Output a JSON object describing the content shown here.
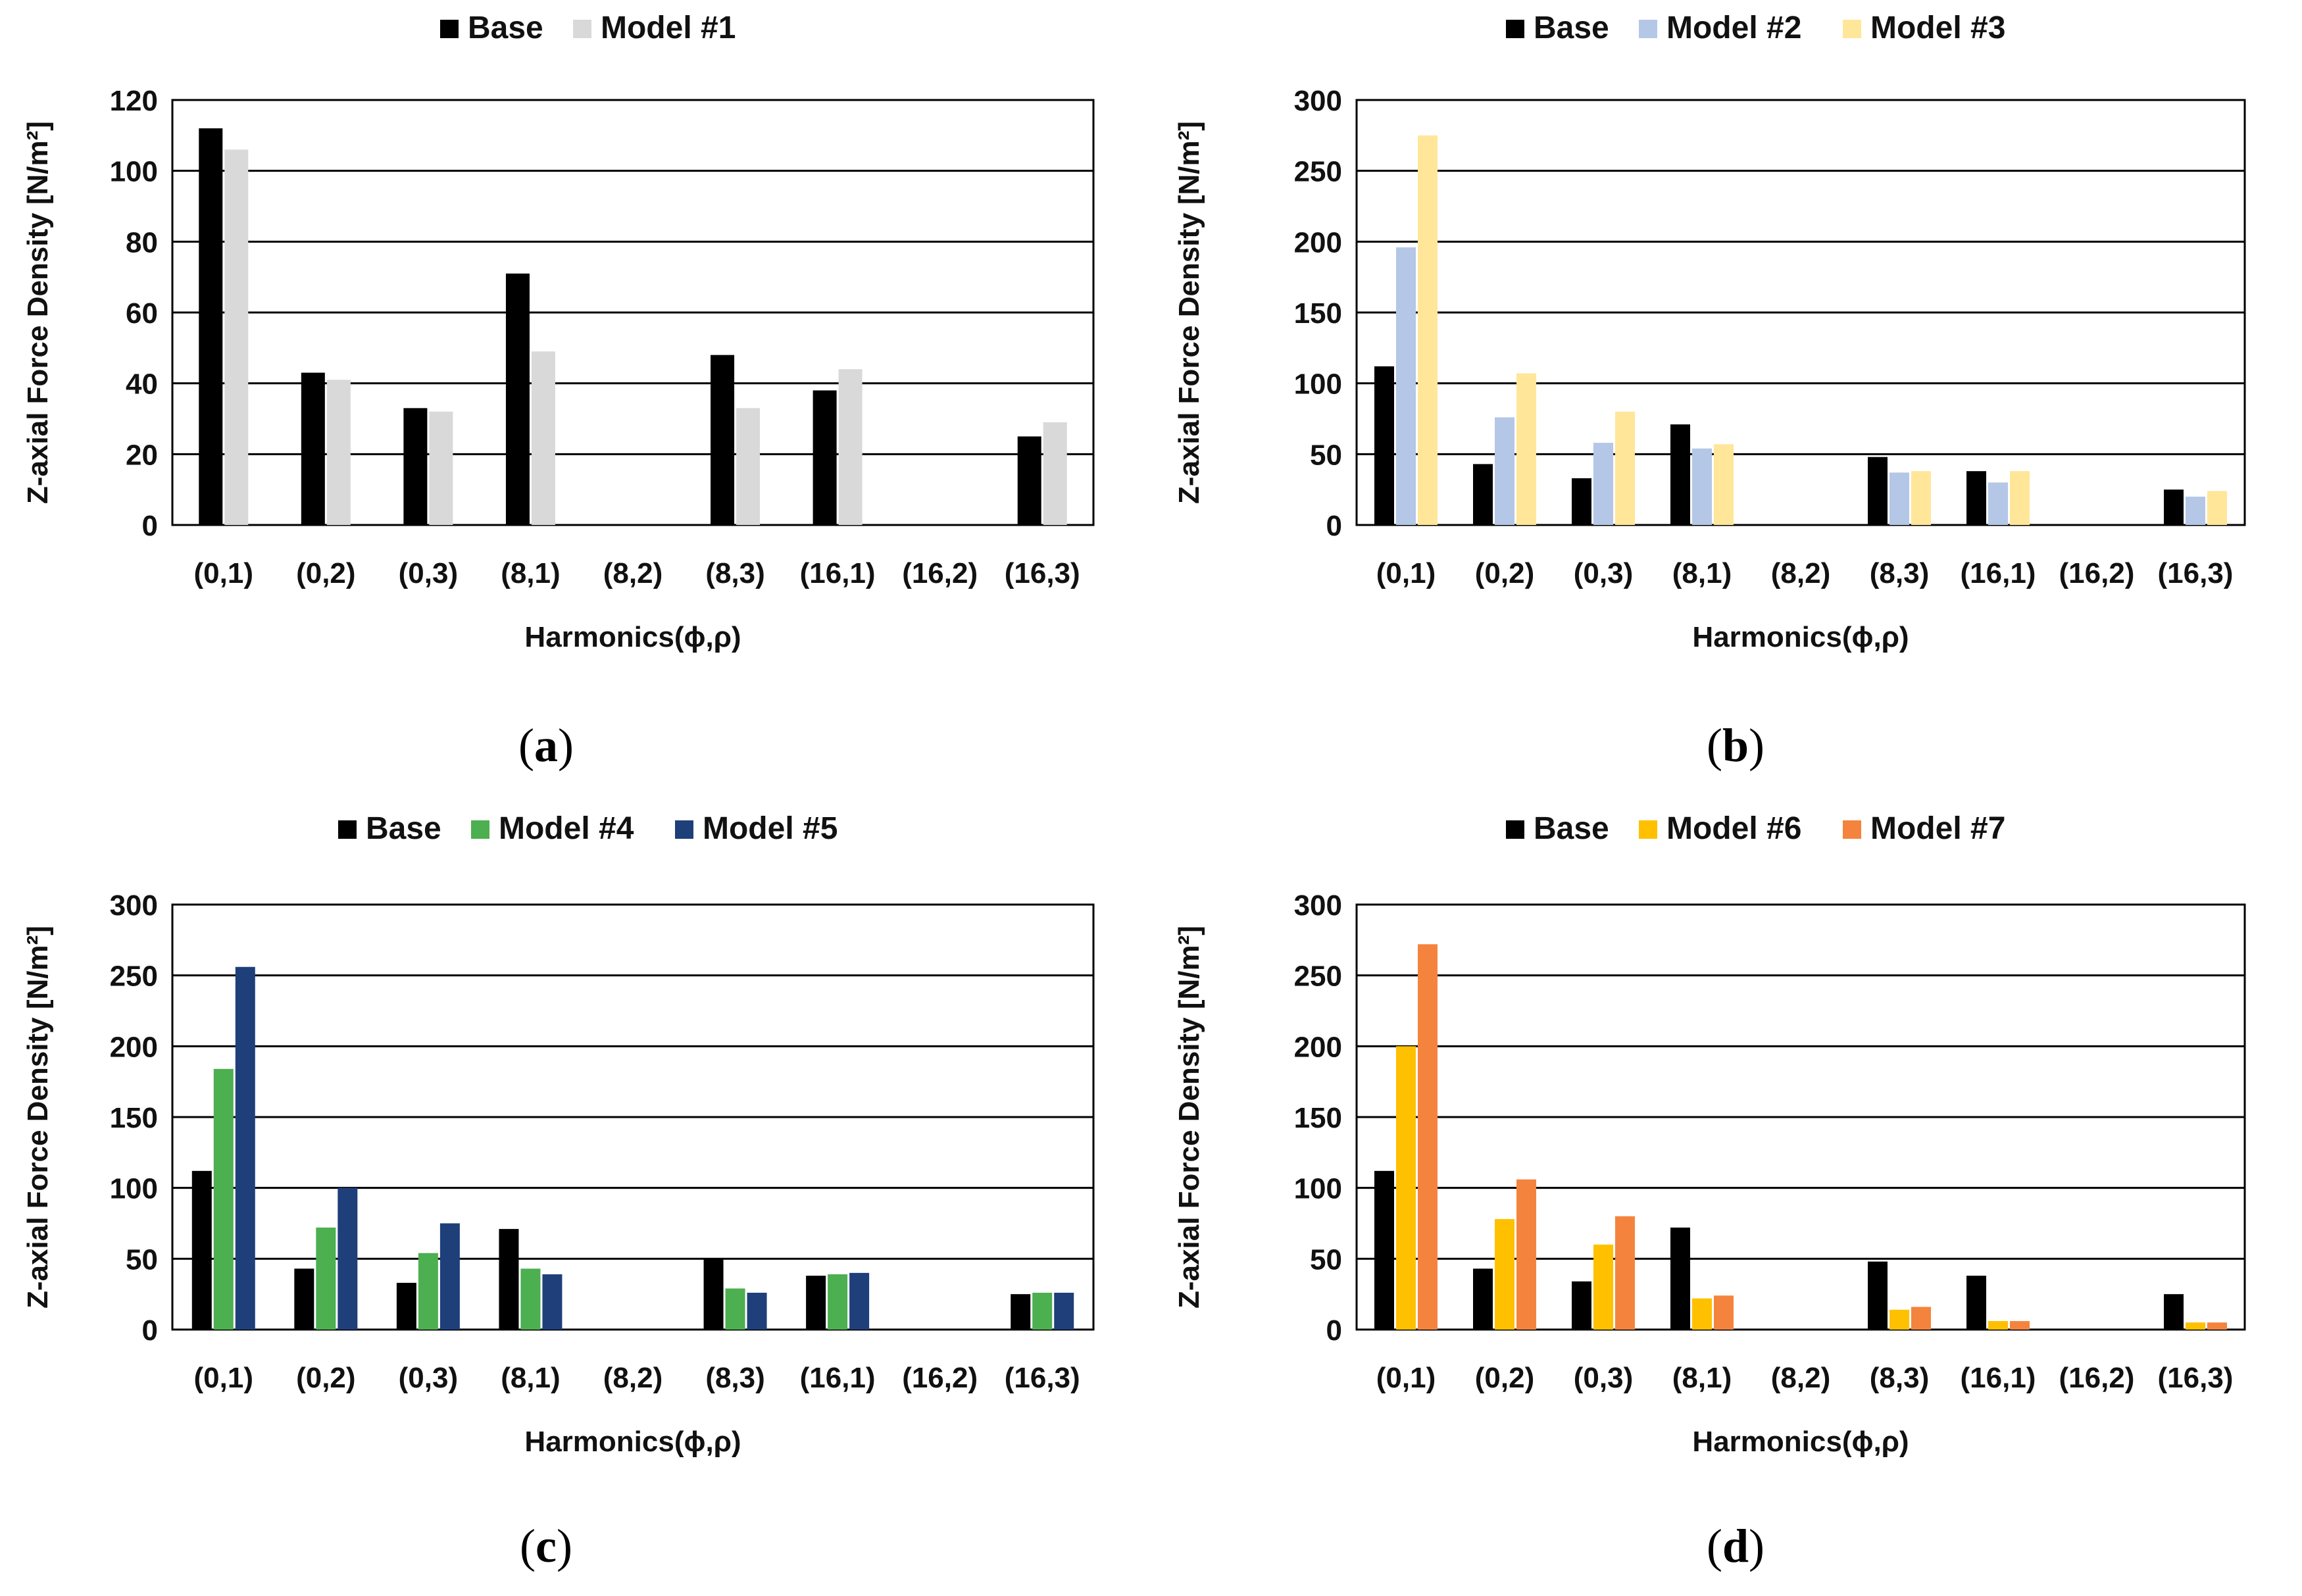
{
  "chart_data": [
    {
      "id": "a",
      "type": "bar",
      "panel_label": "a",
      "xlabel": "Harmonics(ϕ,ρ)",
      "ylabel": "Z-axial Force Density [N/m²]",
      "ylim": [
        0,
        120
      ],
      "yticks": [
        0,
        20,
        40,
        60,
        80,
        100,
        120
      ],
      "grid": true,
      "legend": "top",
      "categories": [
        "(0,1)",
        "(0,2)",
        "(0,3)",
        "(8,1)",
        "(8,2)",
        "(8,3)",
        "(16,1)",
        "(16,2)",
        "(16,3)"
      ],
      "series": [
        {
          "name": "Base",
          "color": "#000000",
          "values": [
            112,
            43,
            33,
            71,
            0,
            48,
            38,
            0,
            25
          ]
        },
        {
          "name": "Model #1",
          "color": "#d9d9d9",
          "values": [
            106,
            41,
            32,
            49,
            0,
            33,
            44,
            0,
            29
          ]
        }
      ]
    },
    {
      "id": "b",
      "type": "bar",
      "panel_label": "b",
      "xlabel": "Harmonics(ϕ,ρ)",
      "ylabel": "Z-axial Force Density [N/m²]",
      "ylim": [
        0,
        300
      ],
      "yticks": [
        0,
        50,
        100,
        150,
        200,
        250,
        300
      ],
      "grid": true,
      "legend": "top",
      "categories": [
        "(0,1)",
        "(0,2)",
        "(0,3)",
        "(8,1)",
        "(8,2)",
        "(8,3)",
        "(16,1)",
        "(16,2)",
        "(16,3)"
      ],
      "series": [
        {
          "name": "Base",
          "color": "#000000",
          "values": [
            112,
            43,
            33,
            71,
            0,
            48,
            38,
            0,
            25
          ]
        },
        {
          "name": "Model #2",
          "color": "#b4c7e7",
          "values": [
            196,
            76,
            58,
            54,
            0,
            37,
            30,
            0,
            20
          ]
        },
        {
          "name": "Model #3",
          "color": "#ffe699",
          "values": [
            275,
            107,
            80,
            57,
            0,
            38,
            38,
            0,
            24
          ]
        }
      ]
    },
    {
      "id": "c",
      "type": "bar",
      "panel_label": "c",
      "xlabel": "Harmonics(ϕ,ρ)",
      "ylabel": "Z-axial Force Density [N/m²]",
      "ylim": [
        0,
        300
      ],
      "yticks": [
        0,
        50,
        100,
        150,
        200,
        250,
        300
      ],
      "grid": true,
      "legend": "top",
      "categories": [
        "(0,1)",
        "(0,2)",
        "(0,3)",
        "(8,1)",
        "(8,2)",
        "(8,3)",
        "(16,1)",
        "(16,2)",
        "(16,3)"
      ],
      "series": [
        {
          "name": "Base",
          "color": "#000000",
          "values": [
            112,
            43,
            33,
            71,
            0,
            50,
            38,
            0,
            25
          ]
        },
        {
          "name": "Model #4",
          "color": "#4caf50",
          "values": [
            184,
            72,
            54,
            43,
            0,
            29,
            39,
            0,
            26
          ]
        },
        {
          "name": "Model #5",
          "color": "#1f3f7a",
          "values": [
            256,
            100,
            75,
            39,
            0,
            26,
            40,
            0,
            26
          ]
        }
      ]
    },
    {
      "id": "d",
      "type": "bar",
      "panel_label": "d",
      "xlabel": "Harmonics(ϕ,ρ)",
      "ylabel": "Z-axial Force Density [N/m²]",
      "ylim": [
        0,
        300
      ],
      "yticks": [
        0,
        50,
        100,
        150,
        200,
        250,
        300
      ],
      "grid": true,
      "legend": "top",
      "categories": [
        "(0,1)",
        "(0,2)",
        "(0,3)",
        "(8,1)",
        "(8,2)",
        "(8,3)",
        "(16,1)",
        "(16,2)",
        "(16,3)"
      ],
      "series": [
        {
          "name": "Base",
          "color": "#000000",
          "values": [
            112,
            43,
            34,
            72,
            0,
            48,
            38,
            0,
            25
          ]
        },
        {
          "name": "Model #6",
          "color": "#ffc000",
          "values": [
            200,
            78,
            60,
            22,
            0,
            14,
            6,
            0,
            5
          ]
        },
        {
          "name": "Model #7",
          "color": "#f4843d",
          "values": [
            272,
            106,
            80,
            24,
            0,
            16,
            6,
            0,
            5
          ]
        }
      ]
    }
  ]
}
